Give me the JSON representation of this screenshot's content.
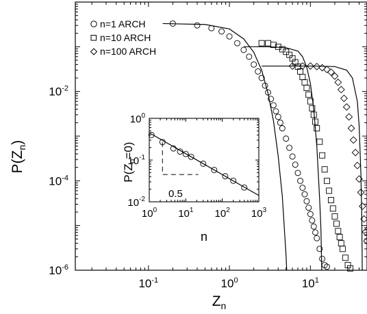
{
  "chart_data": [
    {
      "id": "main",
      "type": "scatter",
      "xscale": "log",
      "yscale": "log",
      "xlim": [
        0.0125,
        50
      ],
      "ylim": [
        1e-06,
        1
      ],
      "xlabel": {
        "base": "Z",
        "sub": "n"
      },
      "ylabel": {
        "pre": "P(Z",
        "sub": "n",
        "post": ")"
      },
      "xticks": [
        {
          "base": "10",
          "exp": "-1",
          "value": 0.1
        },
        {
          "base": "10",
          "exp": "0",
          "value": 1
        },
        {
          "base": "10",
          "exp": "1",
          "value": 10
        }
      ],
      "yticks": [
        {
          "base": "10",
          "exp": "-2",
          "value": 0.01
        },
        {
          "base": "10",
          "exp": "-4",
          "value": 0.0001
        },
        {
          "base": "10",
          "exp": "-6",
          "value": 1e-06
        }
      ],
      "legend": {
        "placement": "top-left",
        "entries": [
          {
            "label": "n=1 ARCH",
            "marker": "circle"
          },
          {
            "label": "n=10 ARCH",
            "marker": "square"
          },
          {
            "label": "n=100 ARCH",
            "marker": "diamond"
          }
        ]
      },
      "series": [
        {
          "name": "n=1 ARCH",
          "marker": "circle",
          "points": [
            [
              0.2,
              0.33
            ],
            [
              0.4,
              0.3
            ],
            [
              0.6,
              0.26
            ],
            [
              0.8,
              0.22
            ],
            [
              1.0,
              0.17
            ],
            [
              1.25,
              0.12
            ],
            [
              1.5,
              0.085
            ],
            [
              1.75,
              0.06
            ],
            [
              2.0,
              0.04
            ],
            [
              2.25,
              0.028
            ],
            [
              2.5,
              0.02
            ],
            [
              2.75,
              0.0135
            ],
            [
              3.0,
              0.0095
            ],
            [
              3.25,
              0.0068
            ],
            [
              3.5,
              0.0049
            ],
            [
              3.75,
              0.0036
            ],
            [
              4.0,
              0.0027
            ],
            [
              4.25,
              0.002
            ],
            [
              4.5,
              0.0015
            ],
            [
              5.0,
              0.00088
            ],
            [
              5.5,
              0.00055
            ],
            [
              6.0,
              0.00035
            ],
            [
              6.5,
              0.00023
            ],
            [
              7.0,
              0.00015
            ],
            [
              7.5,
              0.0001
            ],
            [
              8.0,
              7e-05
            ],
            [
              8.5,
              5e-05
            ],
            [
              9.0,
              3.5e-05
            ],
            [
              9.5,
              2.5e-05
            ],
            [
              10.0,
              1.8e-05
            ],
            [
              10.5,
              1.3e-05
            ],
            [
              11.0,
              9.5e-06
            ],
            [
              11.5,
              7e-06
            ],
            [
              12.0,
              5.2e-06
            ],
            [
              13.0,
              3e-06
            ],
            [
              14.0,
              1.8e-06
            ],
            [
              15.0,
              1.3e-06
            ],
            [
              16.0,
              1.2e-06
            ]
          ],
          "fit": [
            [
              0.15,
              0.33
            ],
            [
              0.5,
              0.315
            ],
            [
              1.0,
              0.25
            ],
            [
              1.5,
              0.15
            ],
            [
              2.0,
              0.075
            ],
            [
              2.5,
              0.03
            ],
            [
              3.0,
              0.009
            ],
            [
              3.5,
              0.0022
            ],
            [
              4.0,
              0.00036
            ],
            [
              4.5,
              4.5e-05
            ],
            [
              5.0,
              2.2e-06
            ],
            [
              5.1,
              1e-06
            ]
          ]
        },
        {
          "name": "n=10 ARCH",
          "marker": "square",
          "points": [
            [
              2.5,
              0.12
            ],
            [
              3.0,
              0.12
            ],
            [
              3.5,
              0.11
            ],
            [
              4.0,
              0.1
            ],
            [
              4.5,
              0.088
            ],
            [
              5.0,
              0.077
            ],
            [
              5.5,
              0.066
            ],
            [
              6.0,
              0.055
            ],
            [
              6.5,
              0.045
            ],
            [
              7.0,
              0.036
            ],
            [
              7.5,
              0.028
            ],
            [
              8.0,
              0.021
            ],
            [
              8.5,
              0.016
            ],
            [
              9.0,
              0.012
            ],
            [
              9.5,
              0.0085
            ],
            [
              10.0,
              0.006
            ],
            [
              10.5,
              0.0042
            ],
            [
              11.0,
              0.003
            ],
            [
              11.5,
              0.0021
            ],
            [
              12.0,
              0.0015
            ],
            [
              13.0,
              0.00075
            ],
            [
              14.0,
              0.00037
            ],
            [
              15.0,
              0.00018
            ],
            [
              16.0,
              0.0001
            ],
            [
              17.0,
              6e-05
            ],
            [
              18.0,
              3.7e-05
            ],
            [
              19.0,
              2.4e-05
            ],
            [
              20.0,
              1.6e-05
            ],
            [
              21.0,
              1.1e-05
            ],
            [
              22.0,
              7.5e-06
            ],
            [
              23.0,
              5.5e-06
            ],
            [
              24.0,
              4e-06
            ],
            [
              25.0,
              3e-06
            ],
            [
              27.0,
              1.9e-06
            ],
            [
              29.0,
              1.3e-06
            ],
            [
              31.0,
              1.1e-06
            ]
          ],
          "fit": [
            [
              1.5,
              0.1
            ],
            [
              3.0,
              0.1
            ],
            [
              5.0,
              0.095
            ],
            [
              7.0,
              0.08
            ],
            [
              8.0,
              0.06
            ],
            [
              9.0,
              0.035
            ],
            [
              10.0,
              0.015
            ],
            [
              11.0,
              0.004
            ],
            [
              12.0,
              0.0006
            ],
            [
              13.0,
              4e-05
            ],
            [
              13.5,
              8e-06
            ],
            [
              13.8,
              1e-06
            ]
          ]
        },
        {
          "name": "n=100 ARCH",
          "marker": "diamond",
          "points": [
            [
              6.0,
              0.037
            ],
            [
              8.0,
              0.037
            ],
            [
              10.0,
              0.037
            ],
            [
              12.0,
              0.036
            ],
            [
              14.0,
              0.034
            ],
            [
              16.0,
              0.031
            ],
            [
              18.0,
              0.027
            ],
            [
              20.0,
              0.022
            ],
            [
              22.0,
              0.016
            ],
            [
              24.0,
              0.011
            ],
            [
              26.0,
              0.007
            ],
            [
              28.0,
              0.0045
            ],
            [
              30.0,
              0.0027
            ],
            [
              32.0,
              0.0015
            ],
            [
              34.0,
              0.00082
            ],
            [
              36.0,
              0.00043
            ],
            [
              38.0,
              0.00022
            ],
            [
              40.0,
              0.00011
            ],
            [
              42.0,
              5.5e-05
            ],
            [
              44.0,
              2.7e-05
            ],
            [
              46.0,
              1.4e-05
            ],
            [
              48.0,
              7.2e-06
            ],
            [
              50.0,
              4.5e-06
            ]
          ],
          "fit": [
            [
              2.5,
              0.037
            ],
            [
              10.0,
              0.037
            ],
            [
              20.0,
              0.036
            ],
            [
              28.0,
              0.03
            ],
            [
              33.0,
              0.02
            ],
            [
              38.0,
              0.006
            ],
            [
              40.0,
              0.0017
            ],
            [
              42.0,
              0.00015
            ],
            [
              43.0,
              2e-05
            ],
            [
              43.5,
              3e-06
            ],
            [
              43.7,
              1e-06
            ]
          ]
        }
      ]
    },
    {
      "id": "inset",
      "type": "scatter",
      "xscale": "log",
      "yscale": "log",
      "xlim": [
        1,
        1000
      ],
      "ylim": [
        0.01,
        1
      ],
      "xlabel": "n",
      "ylabel": {
        "pre": "P(Z",
        "sub": "n",
        "post": "=0)"
      },
      "xticks": [
        {
          "base": "10",
          "exp": "0",
          "value": 1
        },
        {
          "base": "10",
          "exp": "1",
          "value": 10
        },
        {
          "base": "10",
          "exp": "2",
          "value": 100
        },
        {
          "base": "10",
          "exp": "3",
          "value": 1000
        }
      ],
      "yticks": [
        {
          "base": "10",
          "exp": "0",
          "value": 1
        },
        {
          "base": "10",
          "exp": "-1",
          "value": 0.1
        },
        {
          "base": "10",
          "exp": "-2",
          "value": 0.01
        }
      ],
      "annotation": "0.5",
      "points": [
        [
          1.15,
          0.4
        ],
        [
          2.3,
          0.27
        ],
        [
          4.6,
          0.19
        ],
        [
          7.0,
          0.16
        ],
        [
          10.0,
          0.14
        ],
        [
          14.0,
          0.12
        ],
        [
          30.0,
          0.082
        ],
        [
          60.0,
          0.058
        ],
        [
          120.0,
          0.041
        ],
        [
          200.0,
          0.032
        ],
        [
          400.0,
          0.022
        ]
      ],
      "fit": [
        [
          1.0,
          0.45
        ],
        [
          1000.0,
          0.0142
        ]
      ],
      "guide": [
        [
          2.3,
          0.27
        ],
        [
          2.3,
          0.045
        ],
        [
          22.0,
          0.045
        ]
      ]
    }
  ]
}
